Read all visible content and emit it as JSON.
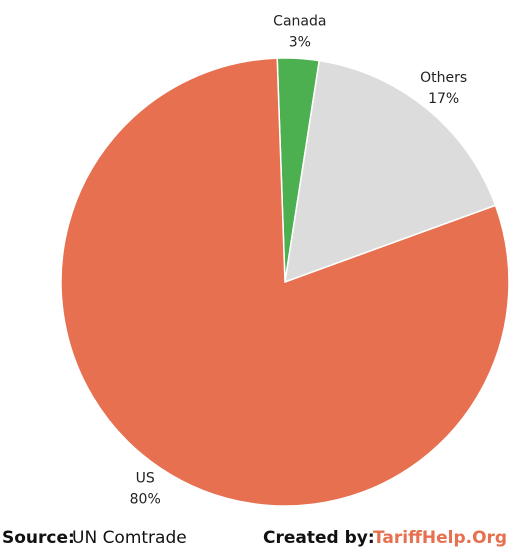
{
  "chart_data": {
    "type": "pie",
    "categories": [
      "Canada",
      "Others",
      "US"
    ],
    "values": [
      3,
      17,
      80
    ],
    "value_labels": [
      "3%",
      "17%",
      "80%"
    ],
    "colors": [
      "#4caf50",
      "#dcdcdc",
      "#e67050"
    ]
  },
  "footer": {
    "source_label": "Source:",
    "source": "UN Comtrade",
    "created_label": "Created by:",
    "created": "TariffHelp.Org"
  }
}
